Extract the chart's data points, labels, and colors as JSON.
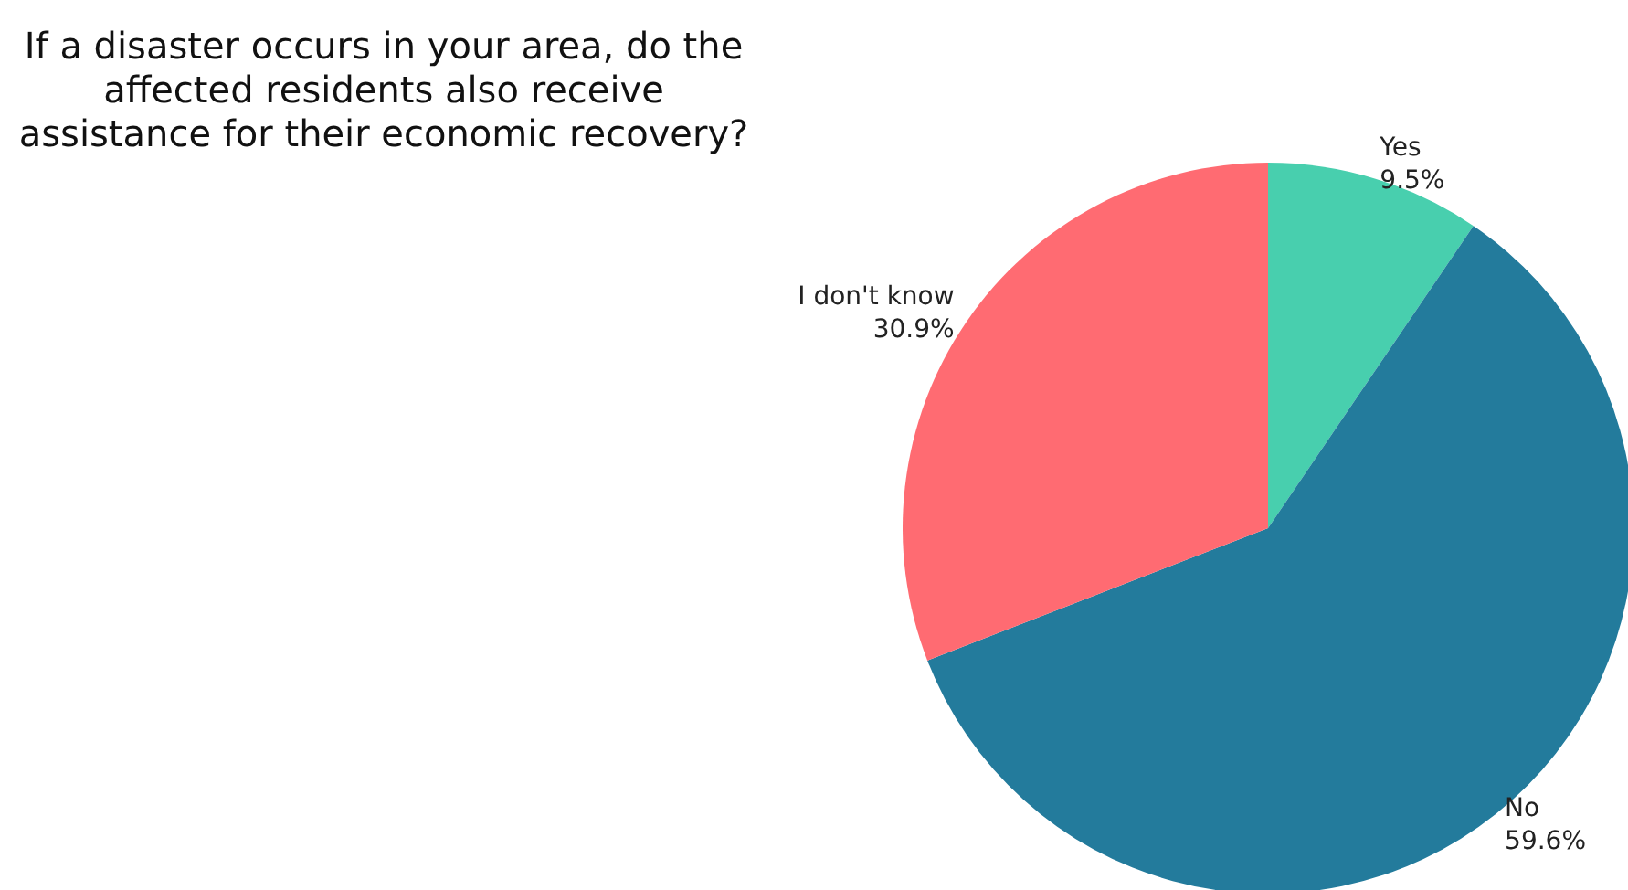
{
  "chart_data": {
    "type": "pie",
    "title": "If a disaster occurs in your area, do the affected residents also receive assistance for their economic recovery?",
    "categories": [
      "Yes",
      "No",
      "I don't know"
    ],
    "values": [
      9.5,
      59.6,
      30.9
    ],
    "value_labels": [
      "9.5%",
      "59.6%",
      "30.9%"
    ],
    "colors": [
      "#48cfae",
      "#237b9c",
      "#ff6b72"
    ]
  }
}
